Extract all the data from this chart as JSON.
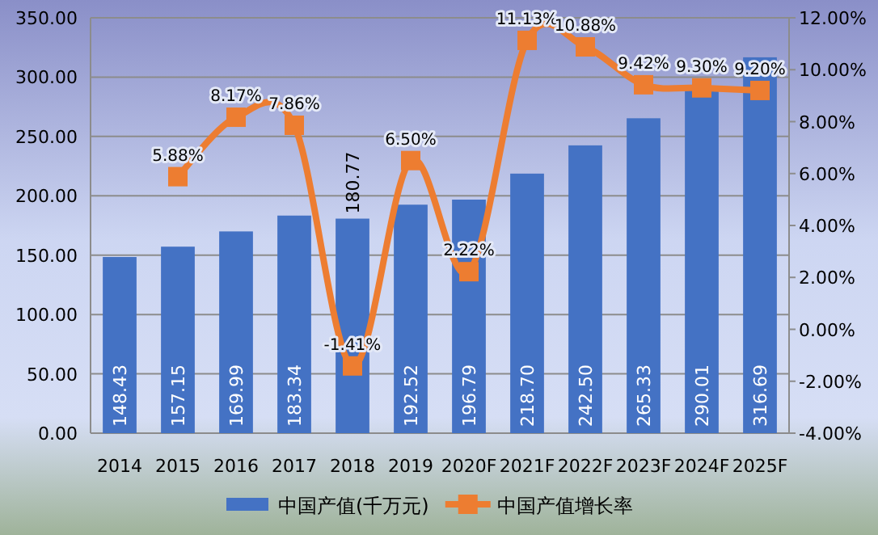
{
  "chart_data": {
    "type": "bar",
    "categories": [
      "2014",
      "2015",
      "2016",
      "2017",
      "2018",
      "2019",
      "2020F",
      "2021F",
      "2022F",
      "2023F",
      "2024F",
      "2025F"
    ],
    "series": [
      {
        "name": "中国产值(千万元)",
        "color": "#4472c4",
        "values": [
          148.43,
          157.15,
          169.99,
          183.34,
          180.77,
          192.52,
          196.79,
          218.7,
          242.5,
          265.33,
          290.01,
          316.69
        ],
        "value_labels": [
          "148.43",
          "157.15",
          "169.99",
          "183.34",
          "180.77",
          "192.52",
          "196.79",
          "218.70",
          "242.50",
          "265.33",
          "290.01",
          "316.69"
        ]
      },
      {
        "name": "中国产值增长率",
        "type": "line",
        "axis": "y2",
        "color": "#ed7d31",
        "marker": "square",
        "values": [
          null,
          5.88,
          8.17,
          7.86,
          -1.41,
          6.5,
          2.22,
          11.13,
          10.88,
          9.42,
          9.3,
          9.2
        ],
        "value_labels": [
          null,
          "5.88%",
          "8.17%",
          "7.86%",
          "-1.41%",
          "6.50%",
          "2.22%",
          "11.13%",
          "10.88%",
          "9.42%",
          "9.30%",
          "9.20%"
        ]
      }
    ],
    "ylim": [
      0,
      350
    ],
    "yticks": [
      {
        "value": 0,
        "label": "0.00"
      },
      {
        "value": 50,
        "label": "50.00"
      },
      {
        "value": 100,
        "label": "100.00"
      },
      {
        "value": 150,
        "label": "150.00"
      },
      {
        "value": 200,
        "label": "200.00"
      },
      {
        "value": 250,
        "label": "250.00"
      },
      {
        "value": 300,
        "label": "300.00"
      },
      {
        "value": 350,
        "label": "350.00"
      }
    ],
    "y2lim": [
      -4,
      12
    ],
    "y2ticks": [
      {
        "value": -4,
        "label": "-4.00%"
      },
      {
        "value": -2,
        "label": "-2.00%"
      },
      {
        "value": 0,
        "label": "0.00%"
      },
      {
        "value": 2,
        "label": "2.00%"
      },
      {
        "value": 4,
        "label": "4.00%"
      },
      {
        "value": 6,
        "label": "6.00%"
      },
      {
        "value": 8,
        "label": "8.00%"
      },
      {
        "value": 10,
        "label": "10.00%"
      },
      {
        "value": 12,
        "label": "12.00%"
      }
    ],
    "grid": "y",
    "legend": "bottom"
  }
}
